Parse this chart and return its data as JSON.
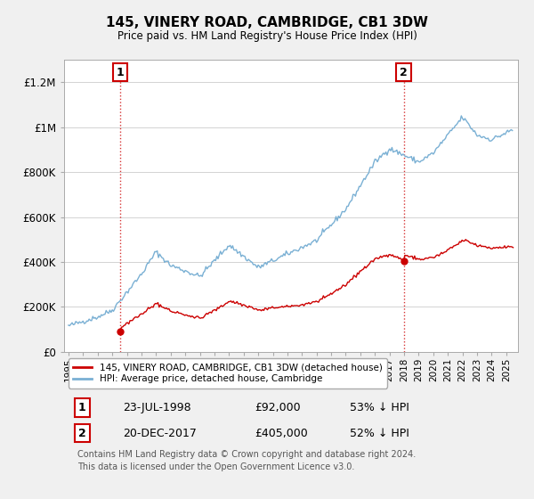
{
  "title": "145, VINERY ROAD, CAMBRIDGE, CB1 3DW",
  "subtitle": "Price paid vs. HM Land Registry's House Price Index (HPI)",
  "ylim": [
    0,
    1300000
  ],
  "xlim_start": 1994.7,
  "xlim_end": 2025.8,
  "transaction1": {
    "date_num": 1998.55,
    "price": 92000,
    "label": "1",
    "note": "23-JUL-1998",
    "amount": "£92,000",
    "pct": "53% ↓ HPI"
  },
  "transaction2": {
    "date_num": 2017.97,
    "price": 405000,
    "label": "2",
    "note": "20-DEC-2017",
    "amount": "£405,000",
    "pct": "52% ↓ HPI"
  },
  "red_line_color": "#cc0000",
  "blue_line_color": "#7ab0d4",
  "vline_color": "#cc0000",
  "dot_color": "#cc0000",
  "background_color": "#f0f0f0",
  "plot_bg_color": "#ffffff",
  "legend_label_red": "145, VINERY ROAD, CAMBRIDGE, CB1 3DW (detached house)",
  "legend_label_blue": "HPI: Average price, detached house, Cambridge",
  "footnote": "Contains HM Land Registry data © Crown copyright and database right 2024.\nThis data is licensed under the Open Government Licence v3.0.",
  "ytick_labels": [
    "£0",
    "£200K",
    "£400K",
    "£600K",
    "£800K",
    "£1M",
    "£1.2M"
  ],
  "ytick_values": [
    0,
    200000,
    400000,
    600000,
    800000,
    1000000,
    1200000
  ]
}
